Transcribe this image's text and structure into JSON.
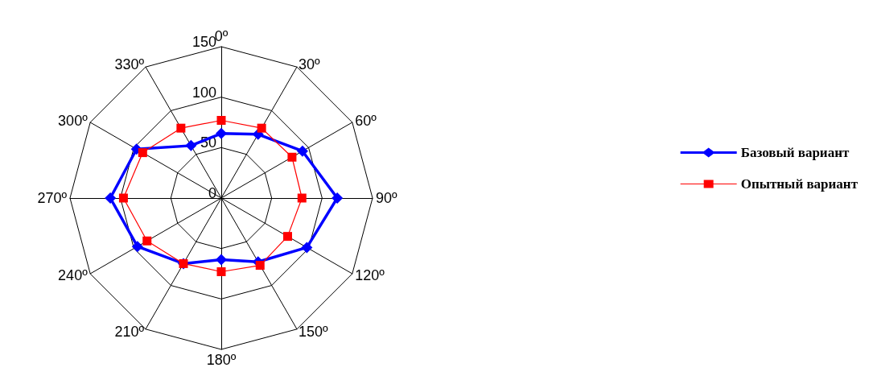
{
  "chart_data": {
    "type": "radar",
    "categories": [
      "0º",
      "30º",
      "60º",
      "90º",
      "120º",
      "150º",
      "180º",
      "210º",
      "240º",
      "270º",
      "300º",
      "330º"
    ],
    "ylim": [
      0,
      150
    ],
    "yticks": [
      0,
      50,
      100,
      150
    ],
    "legend": "right",
    "grid": true,
    "series": [
      {
        "name": "Базовый вариант",
        "color": "#0000ff",
        "marker": "diamond",
        "values": [
          64,
          73,
          93,
          115,
          98,
          73,
          61,
          75,
          96,
          110,
          97,
          60
        ]
      },
      {
        "name": "Опытный вариант",
        "color": "#ff0000",
        "marker": "square",
        "values": [
          77,
          80,
          81,
          80,
          76,
          77,
          73,
          75,
          85,
          97,
          90,
          80
        ]
      }
    ]
  }
}
